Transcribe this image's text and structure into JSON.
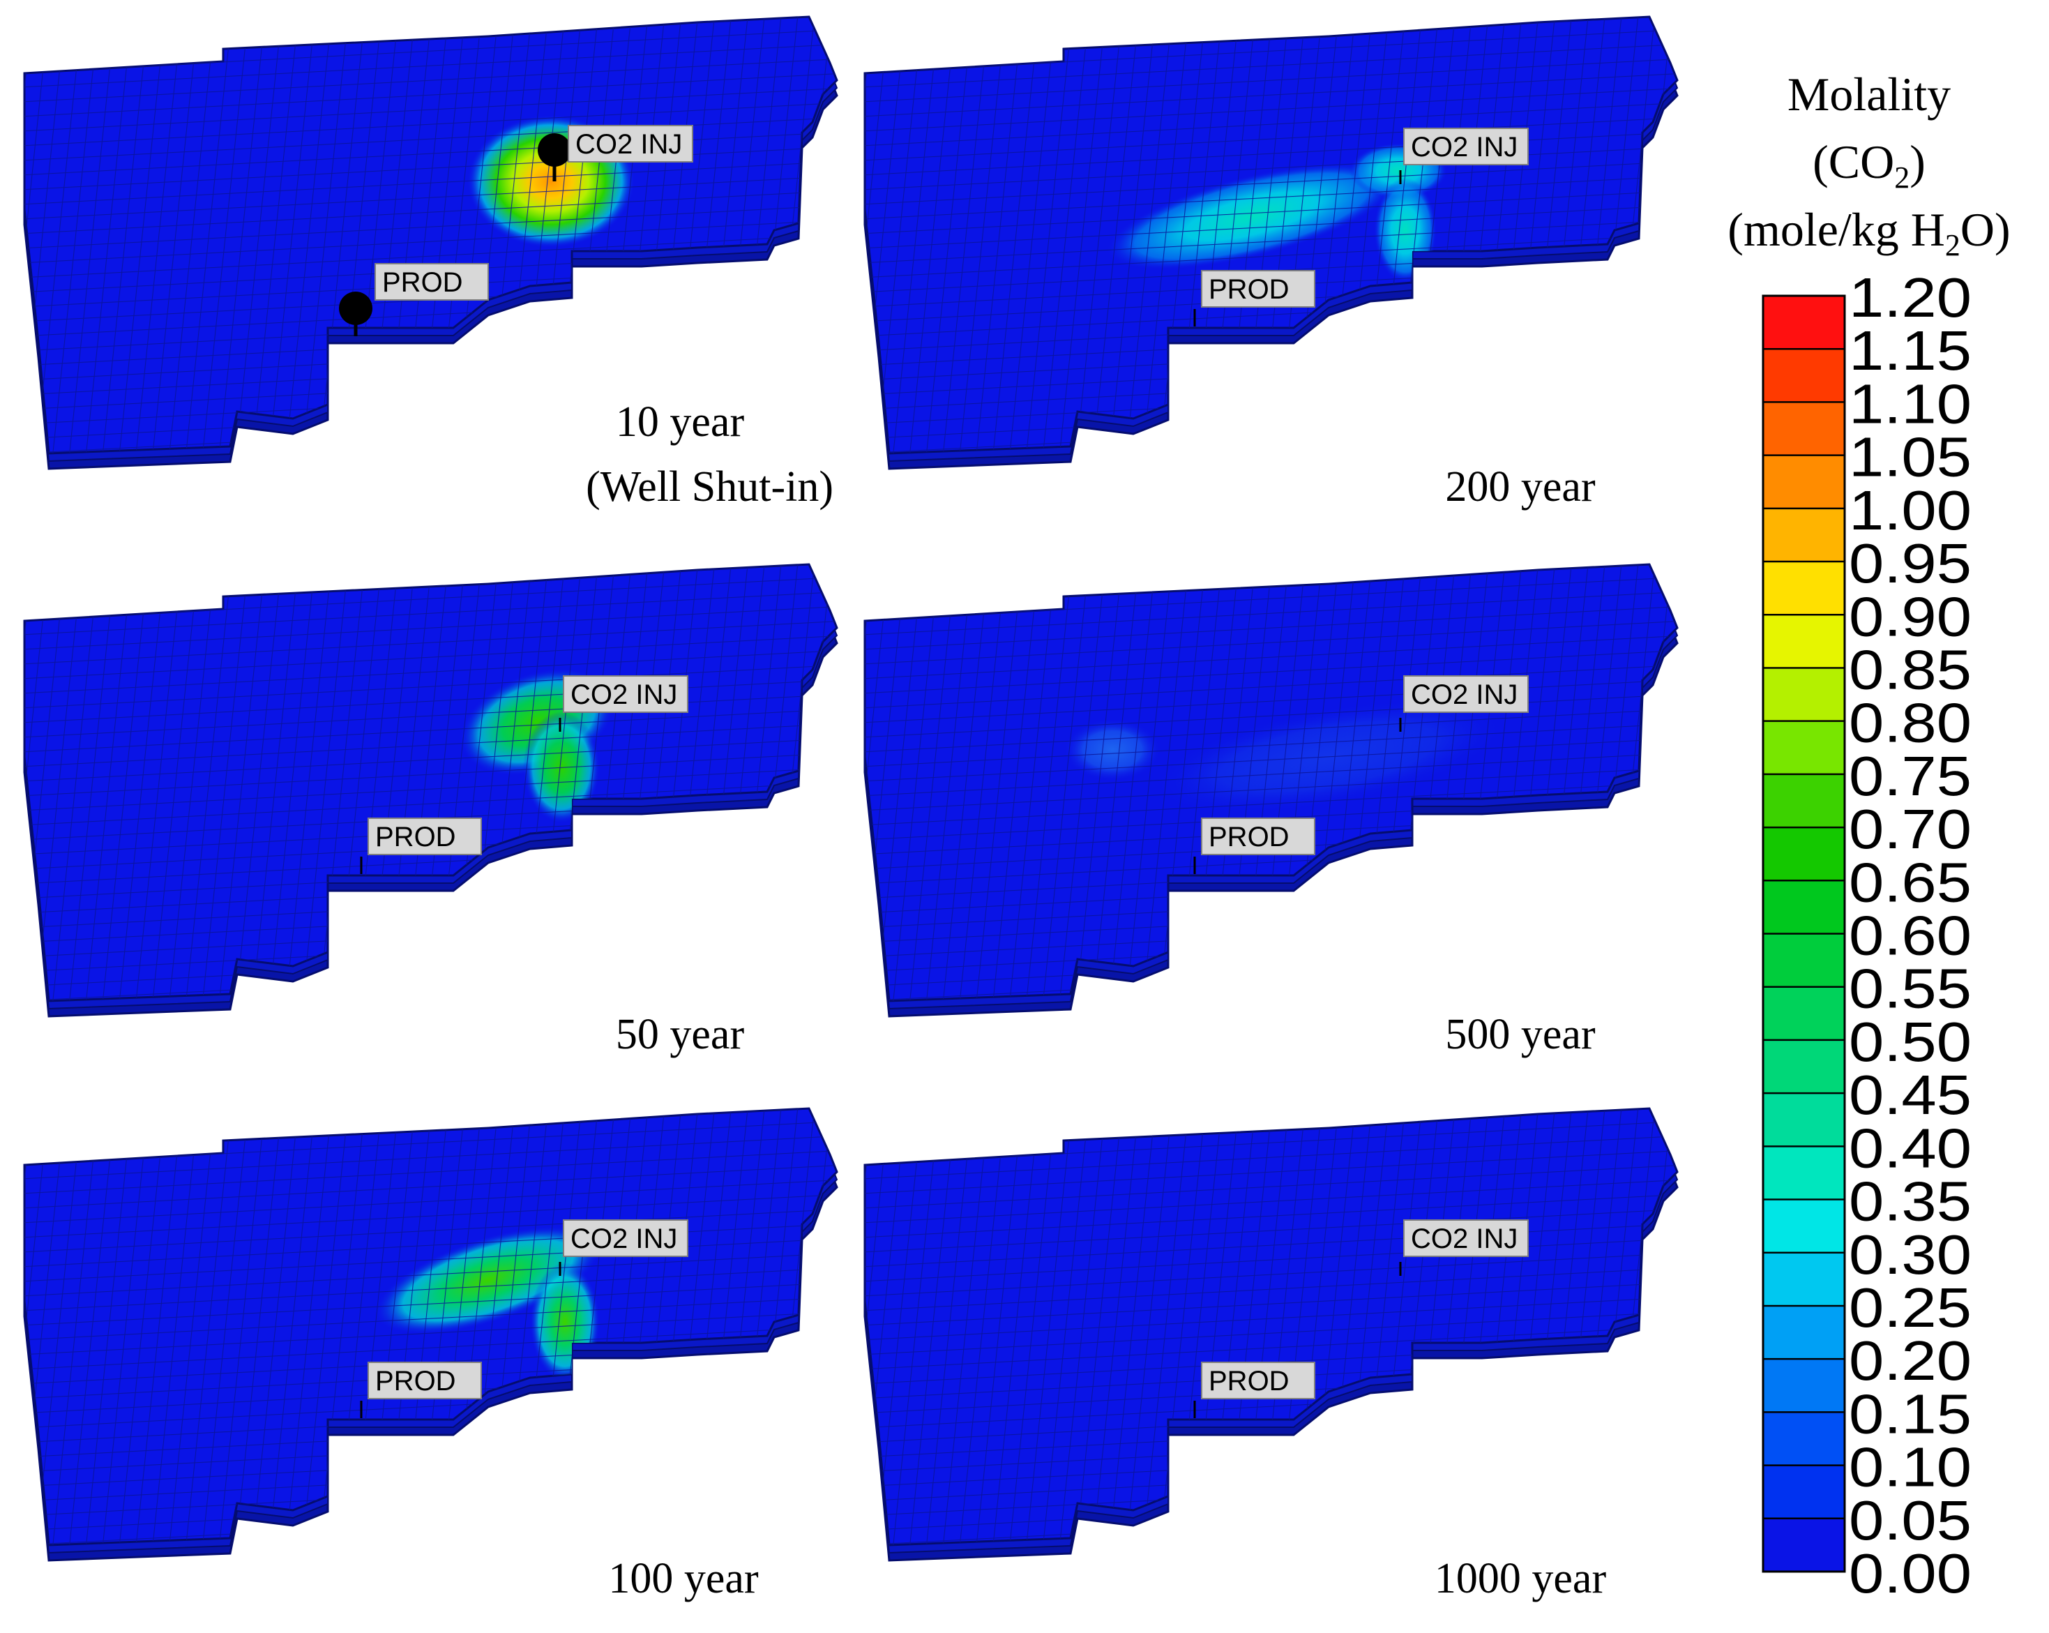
{
  "panels": [
    {
      "id": "p10",
      "caption_lines": [
        "10 year",
        "(Well Shut-in)"
      ],
      "inj_label": "CO2 INJ",
      "prod_label": "PROD",
      "well_markers": true
    },
    {
      "id": "p200",
      "caption_lines": [
        "200 year"
      ],
      "inj_label": "CO2 INJ",
      "prod_label": "PROD",
      "well_markers": false
    },
    {
      "id": "p50",
      "caption_lines": [
        "50 year"
      ],
      "inj_label": "CO2 INJ",
      "prod_label": "PROD",
      "well_markers": false
    },
    {
      "id": "p500",
      "caption_lines": [
        "500 year"
      ],
      "inj_label": "CO2 INJ",
      "prod_label": "PROD",
      "well_markers": false
    },
    {
      "id": "p100",
      "caption_lines": [
        "100 year"
      ],
      "inj_label": "CO2 INJ",
      "prod_label": "PROD",
      "well_markers": false
    },
    {
      "id": "p1000",
      "caption_lines": [
        "1000 year"
      ],
      "inj_label": "CO2 INJ",
      "prod_label": "PROD",
      "well_markers": false
    }
  ],
  "legend": {
    "title_line1": "Molality",
    "title_line2_pre": "(CO",
    "title_line2_sub": "2",
    "title_line2_post": ")",
    "title_line3_pre": "(mole/kg H",
    "title_line3_sub": "2",
    "title_line3_post": "O)",
    "ticks": [
      "1.20",
      "1.15",
      "1.10",
      "1.05",
      "1.00",
      "0.95",
      "0.90",
      "0.85",
      "0.80",
      "0.75",
      "0.70",
      "0.65",
      "0.60",
      "0.55",
      "0.50",
      "0.45",
      "0.40",
      "0.35",
      "0.30",
      "0.25",
      "0.20",
      "0.15",
      "0.10",
      "0.05",
      "0.00"
    ],
    "colors": [
      "#ff1010",
      "#ff3a00",
      "#ff6400",
      "#ff8c00",
      "#ffb400",
      "#ffe000",
      "#e6f500",
      "#b4f000",
      "#78e600",
      "#3cd200",
      "#14c800",
      "#00c81e",
      "#00cd3c",
      "#00d25a",
      "#00d778",
      "#00dc9b",
      "#00e6be",
      "#00e6e6",
      "#00c8f0",
      "#00a0f5",
      "#0078f5",
      "#0050f5",
      "#0032f0",
      "#0a14e6"
    ],
    "base_color": "#0a14e6"
  }
}
